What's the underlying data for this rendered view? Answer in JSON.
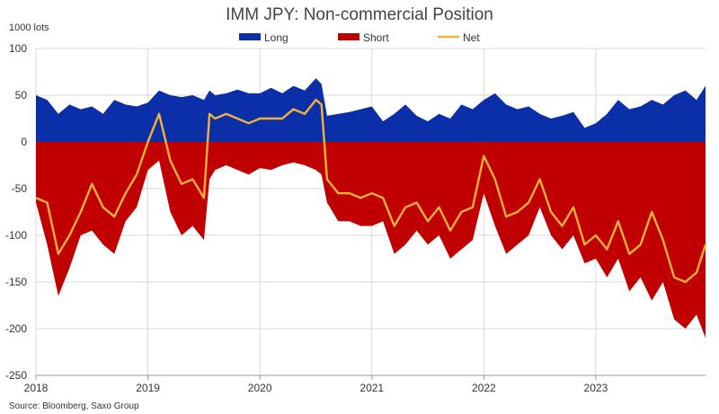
{
  "chart_data": {
    "type": "area",
    "title": "IMM JPY: Non-commercial Position",
    "unit_label": "1000 lots",
    "source": "Source: Bloomberg, Saxo Group",
    "ylim": [
      -250,
      100
    ],
    "y_ticks": [
      100,
      50,
      0,
      -50,
      -100,
      -150,
      -200,
      -250
    ],
    "x_ticks": [
      "2018",
      "2019",
      "2020",
      "2021",
      "2022",
      "2023"
    ],
    "xlim": [
      2018.0,
      2023.98
    ],
    "grid": true,
    "legend_position": "top-center",
    "x": [
      2018.0,
      2018.1,
      2018.2,
      2018.3,
      2018.4,
      2018.5,
      2018.6,
      2018.7,
      2018.8,
      2018.9,
      2019.0,
      2019.1,
      2019.2,
      2019.3,
      2019.4,
      2019.5,
      2019.55,
      2019.6,
      2019.7,
      2019.8,
      2019.9,
      2020.0,
      2020.1,
      2020.2,
      2020.3,
      2020.4,
      2020.5,
      2020.55,
      2020.6,
      2020.7,
      2020.8,
      2020.9,
      2021.0,
      2021.1,
      2021.2,
      2021.3,
      2021.4,
      2021.5,
      2021.6,
      2021.7,
      2021.8,
      2021.9,
      2022.0,
      2022.1,
      2022.2,
      2022.3,
      2022.4,
      2022.5,
      2022.6,
      2022.7,
      2022.8,
      2022.9,
      2023.0,
      2023.1,
      2023.2,
      2023.3,
      2023.4,
      2023.5,
      2023.6,
      2023.7,
      2023.8,
      2023.9,
      2023.98
    ],
    "series": [
      {
        "name": "Long",
        "color": "#0a2fa8",
        "values": [
          50,
          45,
          30,
          40,
          35,
          38,
          30,
          45,
          40,
          38,
          42,
          55,
          50,
          48,
          50,
          45,
          55,
          50,
          52,
          56,
          52,
          52,
          58,
          52,
          60,
          55,
          68,
          62,
          28,
          30,
          32,
          35,
          38,
          22,
          30,
          40,
          28,
          22,
          30,
          25,
          40,
          35,
          45,
          52,
          40,
          35,
          38,
          30,
          25,
          28,
          32,
          15,
          20,
          30,
          45,
          35,
          38,
          45,
          40,
          50,
          55,
          45,
          60
        ]
      },
      {
        "name": "Short",
        "color": "#c00000",
        "values": [
          -65,
          -110,
          -165,
          -135,
          -100,
          -95,
          -110,
          -120,
          -85,
          -70,
          -30,
          -20,
          -75,
          -100,
          -90,
          -105,
          -40,
          -30,
          -25,
          -30,
          -35,
          -28,
          -30,
          -25,
          -22,
          -25,
          -30,
          -35,
          -65,
          -85,
          -85,
          -90,
          -90,
          -85,
          -120,
          -110,
          -95,
          -110,
          -100,
          -125,
          -115,
          -105,
          -55,
          -90,
          -120,
          -110,
          -100,
          -70,
          -100,
          -115,
          -100,
          -130,
          -125,
          -145,
          -125,
          -160,
          -145,
          -170,
          -150,
          -190,
          -200,
          -185,
          -210
        ]
      },
      {
        "name": "Net",
        "color": "#f5b335",
        "values": [
          -60,
          -65,
          -120,
          -100,
          -75,
          -45,
          -70,
          -80,
          -55,
          -35,
          0,
          30,
          -20,
          -45,
          -40,
          -60,
          30,
          25,
          30,
          25,
          20,
          25,
          25,
          25,
          35,
          30,
          45,
          40,
          -40,
          -55,
          -55,
          -60,
          -55,
          -60,
          -90,
          -70,
          -65,
          -85,
          -70,
          -95,
          -75,
          -70,
          -15,
          -40,
          -80,
          -75,
          -65,
          -40,
          -75,
          -90,
          -70,
          -110,
          -100,
          -115,
          -85,
          -120,
          -110,
          -75,
          -105,
          -145,
          -150,
          -140,
          -110
        ]
      }
    ]
  }
}
